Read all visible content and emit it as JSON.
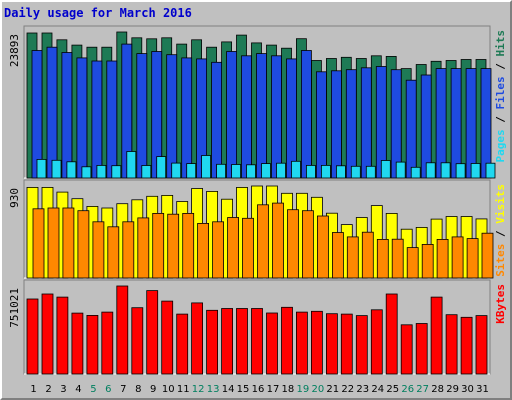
{
  "title": "Daily usage for March 2016",
  "colors": {
    "background": "#c0c0c0",
    "title": "#0000cc",
    "hits": "#1e7a55",
    "files": "#1e4be0",
    "pages": "#20d8f0",
    "visits": "#ffff00",
    "sites": "#ff8800",
    "kbytes": "#ff0000",
    "weekday_label": "#000000",
    "weekend_label": "#007f5f"
  },
  "chart_data": [
    {
      "type": "bar",
      "name": "hits-files-pages",
      "categories": [
        "1",
        "2",
        "3",
        "4",
        "5",
        "6",
        "7",
        "8",
        "9",
        "10",
        "11",
        "12",
        "13",
        "14",
        "15",
        "16",
        "17",
        "18",
        "19",
        "20",
        "21",
        "22",
        "23",
        "24",
        "25",
        "26",
        "27",
        "28",
        "29",
        "30",
        "31"
      ],
      "weekend_days": [
        "5",
        "6",
        "12",
        "13",
        "19",
        "20",
        "26",
        "27"
      ],
      "ymax_label": "23893",
      "ylim": [
        0,
        23893
      ],
      "legend": [
        "Pages",
        "Files",
        "Hits"
      ],
      "series": [
        {
          "name": "Hits",
          "values": [
            23730,
            23730,
            22610,
            21750,
            21410,
            21410,
            23893,
            22950,
            22780,
            22950,
            21910,
            22610,
            21410,
            22270,
            23380,
            22110,
            21750,
            21240,
            22800,
            19230,
            19550,
            19750,
            19550,
            20000,
            19900,
            17900,
            18570,
            19090,
            19230,
            19400,
            19400
          ]
        },
        {
          "name": "Files",
          "values": [
            20860,
            21410,
            20530,
            19660,
            19140,
            19140,
            21910,
            20350,
            20700,
            20180,
            19660,
            19490,
            18930,
            20700,
            20000,
            20350,
            20000,
            19490,
            20860,
            17380,
            17550,
            17730,
            18030,
            18240,
            17720,
            16010,
            16860,
            17900,
            17900,
            17900,
            17900
          ]
        },
        {
          "name": "Pages",
          "values": [
            3050,
            2900,
            2650,
            1830,
            2070,
            2010,
            4330,
            2040,
            3510,
            2440,
            2350,
            3690,
            2240,
            2210,
            2160,
            2360,
            2420,
            2730,
            2060,
            2060,
            2000,
            1920,
            1910,
            2860,
            2610,
            1750,
            2480,
            2480,
            2340,
            2370,
            2420
          ]
        }
      ]
    },
    {
      "type": "bar",
      "name": "visits-sites",
      "categories": [
        "1",
        "2",
        "3",
        "4",
        "5",
        "6",
        "7",
        "8",
        "9",
        "10",
        "11",
        "12",
        "13",
        "14",
        "15",
        "16",
        "17",
        "18",
        "19",
        "20",
        "21",
        "22",
        "23",
        "24",
        "25",
        "26",
        "27",
        "28",
        "29",
        "30",
        "31"
      ],
      "ymax_label": "930",
      "ylim": [
        0,
        930
      ],
      "legend": [
        "Sites",
        "Visits"
      ],
      "series": [
        {
          "name": "Visits",
          "values": [
            916,
            916,
            868,
            802,
            724,
            708,
            751,
            791,
            826,
            835,
            773,
            905,
            875,
            797,
            916,
            930,
            930,
            856,
            856,
            816,
            655,
            540,
            612,
            732,
            653,
            493,
            512,
            595,
            622,
            622,
            597
          ]
        },
        {
          "name": "Sites",
          "values": [
            700,
            708,
            708,
            680,
            568,
            518,
            568,
            608,
            653,
            645,
            653,
            552,
            568,
            612,
            603,
            740,
            757,
            690,
            680,
            627,
            460,
            415,
            463,
            390,
            392,
            307,
            340,
            390,
            415,
            398,
            453
          ]
        }
      ]
    },
    {
      "type": "bar",
      "name": "kbytes",
      "categories": [
        "1",
        "2",
        "3",
        "4",
        "5",
        "6",
        "7",
        "8",
        "9",
        "10",
        "11",
        "12",
        "13",
        "14",
        "15",
        "16",
        "17",
        "18",
        "19",
        "20",
        "21",
        "22",
        "23",
        "24",
        "25",
        "26",
        "27",
        "28",
        "29",
        "30",
        "31"
      ],
      "ymax_label": "751021",
      "ylim": [
        0,
        751021
      ],
      "legend": [
        "KBytes"
      ],
      "series": [
        {
          "name": "KBytes",
          "values": [
            640500,
            683000,
            656000,
            520000,
            500000,
            528000,
            751021,
            566000,
            712000,
            622000,
            511000,
            607000,
            544000,
            559000,
            559000,
            559000,
            521000,
            569000,
            528000,
            535000,
            515000,
            511000,
            498000,
            548000,
            683000,
            420000,
            431000,
            656000,
            506000,
            484000,
            498000
          ]
        }
      ]
    }
  ]
}
